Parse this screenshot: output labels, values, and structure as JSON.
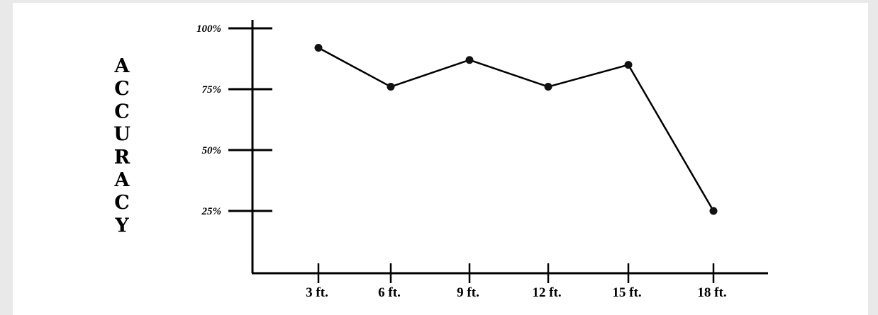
{
  "chart_data": {
    "type": "line",
    "title": "",
    "xlabel": "",
    "ylabel": "ACCURACY",
    "categories": [
      "3 ft.",
      "6 ft.",
      "9 ft.",
      "12 ft.",
      "15 ft.",
      "18 ft."
    ],
    "series": [
      {
        "values": [
          92,
          76,
          87,
          76,
          85,
          25
        ]
      }
    ],
    "yticks": [
      {
        "value": 100,
        "label": "100%"
      },
      {
        "value": 75,
        "label": "75%"
      },
      {
        "value": 50,
        "label": "50%"
      },
      {
        "value": 25,
        "label": "25%"
      }
    ],
    "ylim": [
      0,
      100
    ],
    "grid": false,
    "legend": "none",
    "colors": {
      "line": "#000000",
      "marker": "#111111",
      "axis": "#000000"
    }
  }
}
